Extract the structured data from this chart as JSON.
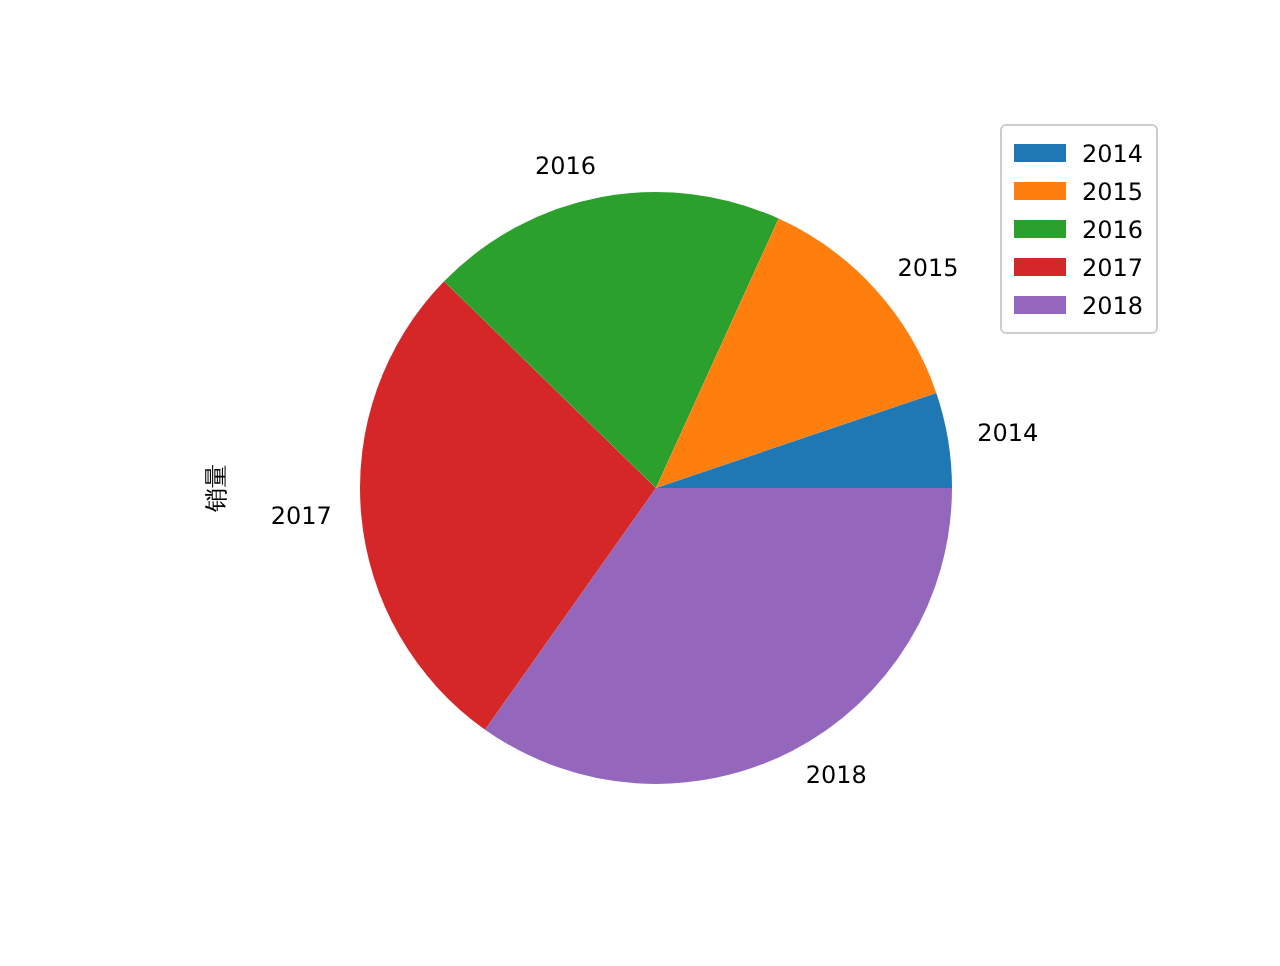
{
  "chart_data": {
    "type": "pie",
    "ylabel": "销量",
    "categories": [
      "2014",
      "2015",
      "2016",
      "2017",
      "2018"
    ],
    "values": [
      5.2,
      13.0,
      19.5,
      27.5,
      34.8
    ],
    "colors": [
      "#1f77b4",
      "#ff7f0e",
      "#2ca02c",
      "#d62728",
      "#9467bd"
    ],
    "legend": "top right"
  }
}
